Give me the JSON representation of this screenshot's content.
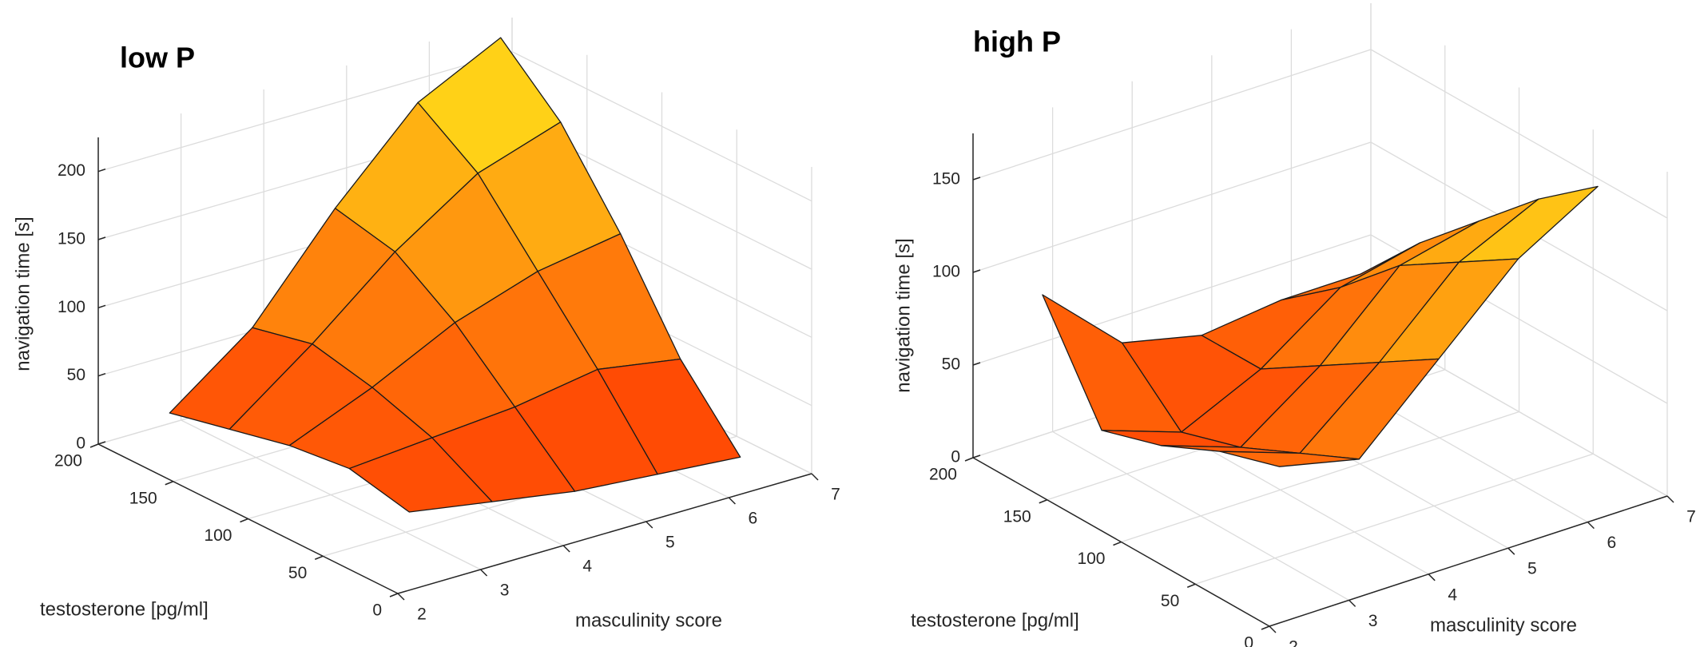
{
  "chart_data": [
    {
      "type": "surface",
      "title": "low P",
      "xlabel": "masculinity score",
      "ylabel": "testosterone [pg/ml]",
      "zlabel": "navigation time [s]",
      "x": [
        2.5,
        3.5,
        4.5,
        5.5,
        6.5
      ],
      "y": [
        20,
        60,
        100,
        140,
        180
      ],
      "z": [
        [
          40,
          30,
          20,
          15,
          10
        ],
        [
          50,
          55,
          60,
          70,
          60
        ],
        [
          45,
          70,
          100,
          120,
          130
        ],
        [
          35,
          80,
          130,
          170,
          190
        ],
        [
          25,
          70,
          140,
          200,
          230
        ]
      ],
      "xlim": [
        2,
        7
      ],
      "ylim": [
        0,
        200
      ],
      "zlim": [
        0,
        225
      ],
      "xticks": [
        2,
        3,
        4,
        5,
        6,
        7
      ],
      "yticks": [
        0,
        50,
        100,
        150,
        200
      ],
      "zticks": [
        0,
        50,
        100,
        150,
        200
      ],
      "grid": true,
      "colormap": [
        "#ff2a00",
        "#ffe81a"
      ]
    },
    {
      "type": "surface",
      "title": "high P",
      "xlabel": "masculinity score",
      "ylabel": "testosterone [pg/ml]",
      "zlabel": "navigation time [s]",
      "x": [
        2.5,
        3.5,
        4.5,
        5.5,
        6.5
      ],
      "y": [
        20,
        60,
        100,
        140,
        180
      ],
      "z": [
        [
          70,
          60,
          100,
          140,
          165
        ],
        [
          60,
          45,
          80,
          120,
          140
        ],
        [
          45,
          30,
          60,
          100,
          110
        ],
        [
          35,
          20,
          40,
          70,
          80
        ],
        [
          90,
          50,
          40,
          45,
          45
        ]
      ],
      "xlim": [
        2,
        7
      ],
      "ylim": [
        0,
        200
      ],
      "zlim": [
        0,
        175
      ],
      "xticks": [
        2,
        3,
        4,
        5,
        6,
        7
      ],
      "yticks": [
        0,
        50,
        100,
        150,
        200
      ],
      "zticks": [
        0,
        50,
        100,
        150
      ],
      "grid": true,
      "colormap": [
        "#ff2a00",
        "#ffe81a"
      ]
    }
  ]
}
